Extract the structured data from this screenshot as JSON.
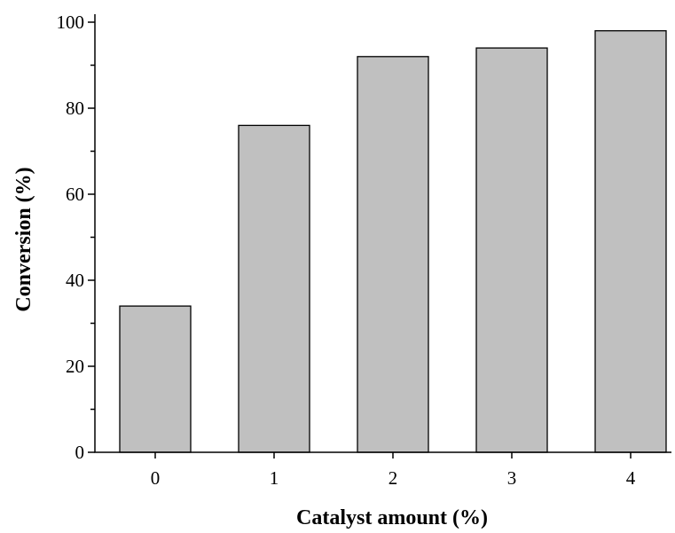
{
  "chart_data": {
    "type": "bar",
    "title": "",
    "xlabel": "Catalyst amount (%)",
    "ylabel": "Conversion (%)",
    "categories": [
      "0",
      "1",
      "2",
      "3",
      "4"
    ],
    "values": [
      34,
      76,
      92,
      94,
      98
    ],
    "ylim": [
      0,
      100
    ],
    "yticks": [
      "0",
      "20",
      "40",
      "60",
      "80",
      "100"
    ],
    "grid": false,
    "legend": "none",
    "colors": {
      "bar_fill": "#c0c0c0",
      "bar_stroke": "#000000",
      "axis": "#000000"
    }
  }
}
